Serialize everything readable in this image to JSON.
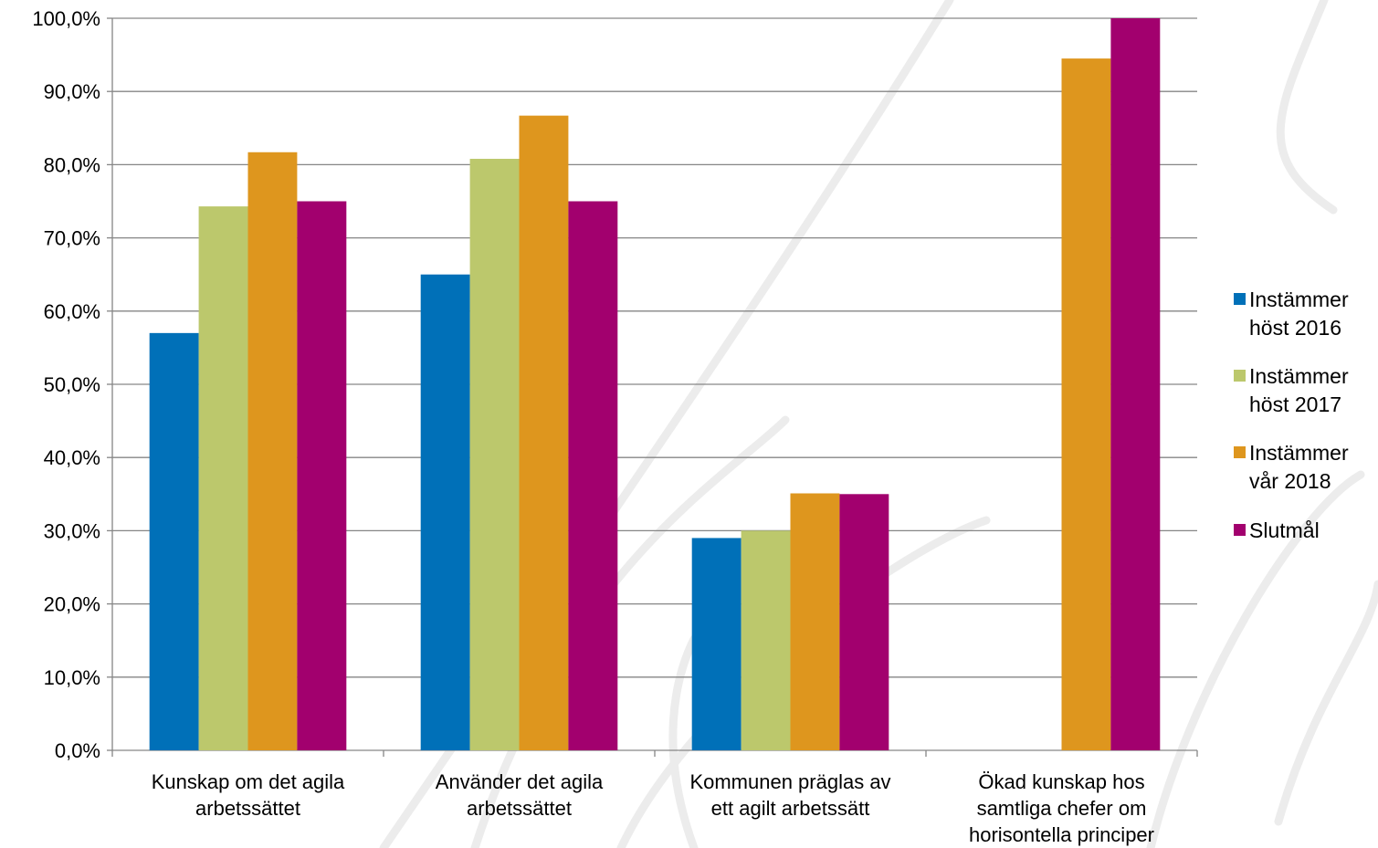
{
  "chart_data": {
    "type": "bar",
    "categories": [
      [
        "Kunskap om det agila",
        "arbetssättet"
      ],
      [
        "Använder det agila",
        "arbetssättet"
      ],
      [
        "Kommunen präglas av",
        "ett agilt arbetssätt"
      ],
      [
        "Ökad kunskap hos",
        "samtliga chefer om",
        "horisontella principer"
      ]
    ],
    "series": [
      {
        "name": [
          "Instämmer",
          "höst 2016"
        ],
        "color": "#0070b8",
        "values": [
          57.0,
          65.0,
          29.0,
          null
        ]
      },
      {
        "name": [
          "Instämmer",
          "höst 2017"
        ],
        "color": "#bcc86c",
        "values": [
          74.3,
          80.8,
          30.0,
          null
        ]
      },
      {
        "name": [
          "Instämmer",
          "vår 2018"
        ],
        "color": "#de961e",
        "values": [
          81.7,
          86.7,
          35.1,
          94.5
        ]
      },
      {
        "name": [
          "Slutmål"
        ],
        "color": "#a2006e",
        "values": [
          75.0,
          75.0,
          35.0,
          100.0
        ]
      }
    ],
    "yticks": [
      "0,0%",
      "10,0%",
      "20,0%",
      "30,0%",
      "40,0%",
      "50,0%",
      "60,0%",
      "70,0%",
      "80,0%",
      "90,0%",
      "100,0%"
    ],
    "ylim": [
      0,
      100
    ],
    "grid": true,
    "legend_position": "right",
    "title": "",
    "xlabel": "",
    "ylabel": ""
  }
}
